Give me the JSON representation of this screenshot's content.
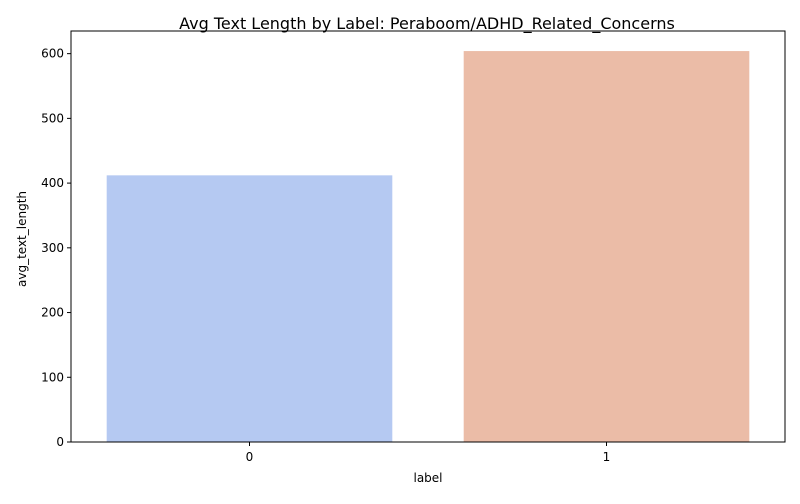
{
  "chart_data": {
    "type": "bar",
    "title": "Avg Text Length by Label: Peraboom/ADHD_Related_Concerns",
    "xlabel": "label",
    "ylabel": "avg_text_length",
    "categories": [
      "0",
      "1"
    ],
    "values": [
      412,
      604
    ],
    "colors": [
      "#b5c9f2",
      "#ebbca7"
    ],
    "ylim": [
      0,
      635
    ],
    "yticks": [
      0,
      100,
      200,
      300,
      400,
      500,
      600
    ],
    "grid": false,
    "legend": "none"
  }
}
